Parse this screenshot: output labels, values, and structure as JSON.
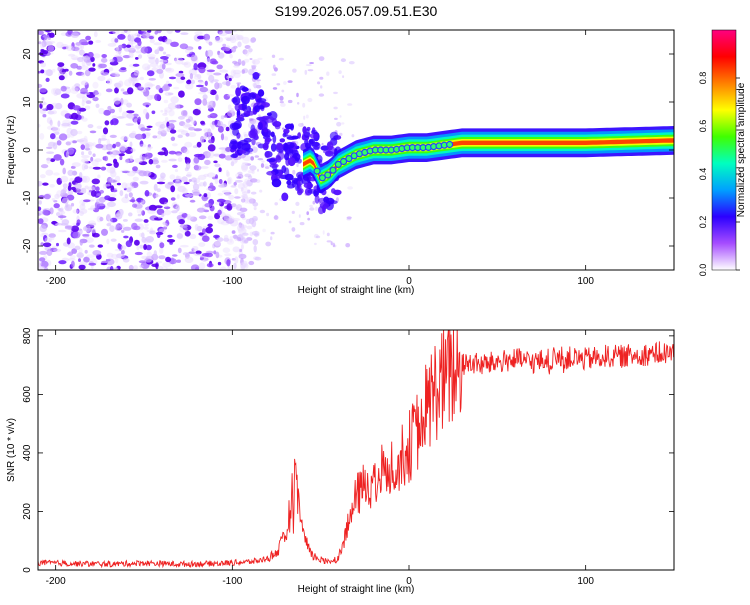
{
  "title": "S199.2026.057.09.51.E30",
  "chart_data": [
    {
      "type": "heatmap",
      "title": "S199.2026.057.09.51.E30",
      "xlabel": "Height of straight line (km)",
      "ylabel": "Frequency (Hz)",
      "xlim": [
        -210,
        150
      ],
      "ylim": [
        -25,
        25
      ],
      "xticks": [
        -200,
        -100,
        0,
        100
      ],
      "yticks": [
        -20,
        -10,
        0,
        10,
        20
      ],
      "colorbar": {
        "label": "Normalized spectral amplitude",
        "range": [
          0.0,
          1.0
        ],
        "ticks": [
          "0.0",
          "0.2",
          "0.4",
          "0.6",
          "0.8"
        ],
        "colors": [
          "#ffffff",
          "#a64dff",
          "#2b00ff",
          "#00a0ff",
          "#00ffc0",
          "#40ff00",
          "#ffff00",
          "#ff8000",
          "#ff0000",
          "#ff0080"
        ]
      },
      "ridge": {
        "description": "dominant frequency track",
        "x": [
          -100,
          -90,
          -85,
          -80,
          -75,
          -70,
          -65,
          -60,
          -55,
          -50,
          -45,
          -40,
          -30,
          -20,
          -10,
          0,
          10,
          20,
          30,
          60,
          100,
          150
        ],
        "y": [
          5,
          7,
          10,
          2,
          -1,
          -3,
          0,
          -3,
          -2,
          -6,
          -5,
          -3,
          -1,
          0,
          0,
          0.5,
          0.5,
          1,
          1.5,
          1.5,
          1.5,
          2
        ]
      }
    },
    {
      "type": "line",
      "xlabel": "Height of straight line (km)",
      "ylabel": "SNR (10 * v/v)",
      "xlim": [
        -210,
        150
      ],
      "ylim": [
        0,
        820
      ],
      "xticks": [
        -200,
        -100,
        0,
        100
      ],
      "yticks": [
        0,
        200,
        400,
        600,
        800
      ],
      "series": [
        {
          "name": "SNR",
          "color": "#ee2222",
          "x": [
            -210,
            -190,
            -170,
            -150,
            -130,
            -110,
            -100,
            -90,
            -85,
            -80,
            -75,
            -70,
            -68,
            -65,
            -62,
            -60,
            -57,
            -55,
            -50,
            -45,
            -40,
            -35,
            -30,
            -25,
            -20,
            -15,
            -10,
            -5,
            0,
            5,
            10,
            15,
            20,
            25,
            30,
            35,
            40,
            50,
            60,
            70,
            80,
            90,
            100,
            110,
            120,
            130,
            140,
            150
          ],
          "y": [
            25,
            22,
            20,
            24,
            20,
            22,
            25,
            28,
            32,
            40,
            60,
            110,
            180,
            290,
            230,
            120,
            70,
            50,
            35,
            30,
            40,
            140,
            250,
            290,
            300,
            340,
            360,
            380,
            420,
            480,
            560,
            620,
            650,
            680,
            700,
            710,
            700,
            710,
            720,
            710,
            720,
            725,
            720,
            730,
            730,
            735,
            740,
            740
          ]
        }
      ]
    }
  ]
}
